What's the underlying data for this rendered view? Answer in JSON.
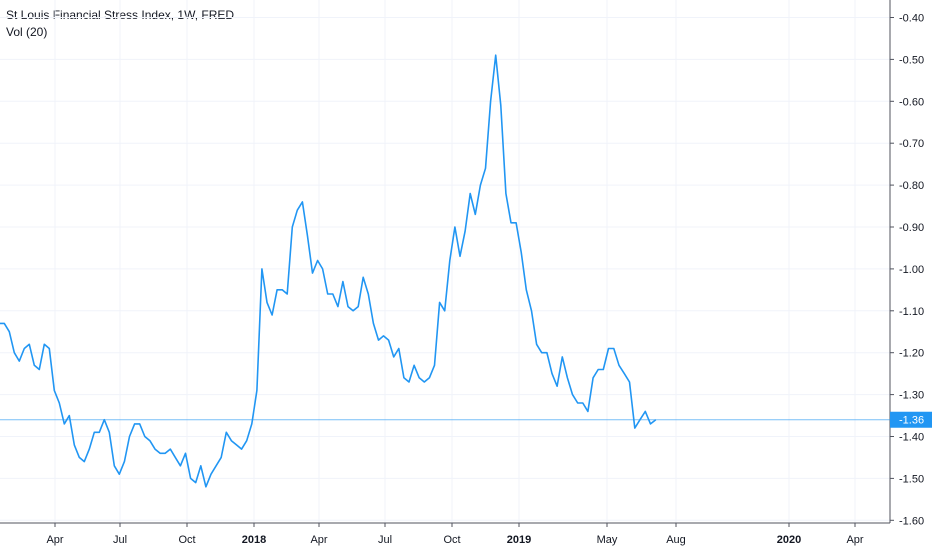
{
  "legend": {
    "title": "St Louis Financial Stress Index, 1W, FRED",
    "indicator": "Vol (20)"
  },
  "colors": {
    "series": "#2196f3",
    "grid": "#f0f3fa",
    "axis": "#50535e",
    "last_value_bg": "#2196f3"
  },
  "chart_data": {
    "type": "line",
    "title": "St Louis Financial Stress Index, 1W, FRED",
    "y_axis_position": "right",
    "y_direction": "inverted",
    "ylim": [
      -1.62,
      -0.37
    ],
    "y_ticks": [
      -0.4,
      -0.5,
      -0.6,
      -0.7,
      -0.8,
      -0.9,
      -1.0,
      -1.1,
      -1.2,
      -1.3,
      -1.4,
      -1.5,
      -1.6
    ],
    "y_tick_labels": [
      "-0.40",
      "-0.50",
      "-0.60",
      "-0.70",
      "-0.80",
      "-0.90",
      "-1.00",
      "-1.10",
      "-1.20",
      "-1.30",
      "-1.40",
      "-1.50",
      "-1.60"
    ],
    "x_ticks": [
      {
        "label": "Apr",
        "date": "2017-04-01",
        "year": false
      },
      {
        "label": "Jul",
        "date": "2017-07-01",
        "year": false
      },
      {
        "label": "Oct",
        "date": "2017-10-01",
        "year": false
      },
      {
        "label": "2018",
        "date": "2018-01-01",
        "year": true
      },
      {
        "label": "Apr",
        "date": "2018-04-01",
        "year": false
      },
      {
        "label": "Jul",
        "date": "2018-07-01",
        "year": false
      },
      {
        "label": "Oct",
        "date": "2018-10-01",
        "year": false
      },
      {
        "label": "2019",
        "date": "2019-01-01",
        "year": true
      },
      {
        "label": "May",
        "date": "2019-05-01",
        "year": false
      },
      {
        "label": "Aug",
        "date": "2019-08-01",
        "year": false
      },
      {
        "label": "2020",
        "date": "2020-01-01",
        "year": true
      },
      {
        "label": "Apr",
        "date": "2020-04-01",
        "year": false
      }
    ],
    "last_value": -1.36,
    "last_value_label": "-1.36",
    "grid": true,
    "series": [
      {
        "values": [
          [
            "2016-12-30",
            -1.07
          ],
          [
            "2017-01-06",
            -1.07
          ],
          [
            "2017-01-13",
            -1.13
          ],
          [
            "2017-01-20",
            -1.13
          ],
          [
            "2017-01-27",
            -1.15
          ],
          [
            "2017-02-03",
            -1.2
          ],
          [
            "2017-02-10",
            -1.22
          ],
          [
            "2017-02-17",
            -1.19
          ],
          [
            "2017-02-24",
            -1.18
          ],
          [
            "2017-03-03",
            -1.23
          ],
          [
            "2017-03-10",
            -1.24
          ],
          [
            "2017-03-17",
            -1.18
          ],
          [
            "2017-03-24",
            -1.19
          ],
          [
            "2017-03-31",
            -1.29
          ],
          [
            "2017-04-07",
            -1.32
          ],
          [
            "2017-04-14",
            -1.37
          ],
          [
            "2017-04-21",
            -1.35
          ],
          [
            "2017-04-28",
            -1.42
          ],
          [
            "2017-05-05",
            -1.45
          ],
          [
            "2017-05-12",
            -1.46
          ],
          [
            "2017-05-19",
            -1.43
          ],
          [
            "2017-05-26",
            -1.39
          ],
          [
            "2017-06-02",
            -1.39
          ],
          [
            "2017-06-09",
            -1.36
          ],
          [
            "2017-06-16",
            -1.39
          ],
          [
            "2017-06-23",
            -1.47
          ],
          [
            "2017-06-30",
            -1.49
          ],
          [
            "2017-07-07",
            -1.46
          ],
          [
            "2017-07-14",
            -1.4
          ],
          [
            "2017-07-21",
            -1.37
          ],
          [
            "2017-07-28",
            -1.37
          ],
          [
            "2017-08-04",
            -1.4
          ],
          [
            "2017-08-11",
            -1.41
          ],
          [
            "2017-08-18",
            -1.43
          ],
          [
            "2017-08-25",
            -1.44
          ],
          [
            "2017-09-01",
            -1.44
          ],
          [
            "2017-09-08",
            -1.43
          ],
          [
            "2017-09-15",
            -1.45
          ],
          [
            "2017-09-22",
            -1.47
          ],
          [
            "2017-09-29",
            -1.44
          ],
          [
            "2017-10-06",
            -1.5
          ],
          [
            "2017-10-13",
            -1.51
          ],
          [
            "2017-10-20",
            -1.47
          ],
          [
            "2017-10-27",
            -1.52
          ],
          [
            "2017-11-03",
            -1.49
          ],
          [
            "2017-11-10",
            -1.47
          ],
          [
            "2017-11-17",
            -1.45
          ],
          [
            "2017-11-24",
            -1.39
          ],
          [
            "2017-12-01",
            -1.41
          ],
          [
            "2017-12-08",
            -1.42
          ],
          [
            "2017-12-15",
            -1.43
          ],
          [
            "2017-12-22",
            -1.41
          ],
          [
            "2017-12-29",
            -1.37
          ],
          [
            "2018-01-05",
            -1.29
          ],
          [
            "2018-01-12",
            -1.0
          ],
          [
            "2018-01-19",
            -1.08
          ],
          [
            "2018-01-26",
            -1.11
          ],
          [
            "2018-02-02",
            -1.05
          ],
          [
            "2018-02-09",
            -1.05
          ],
          [
            "2018-02-16",
            -1.06
          ],
          [
            "2018-02-23",
            -0.9
          ],
          [
            "2018-03-02",
            -0.86
          ],
          [
            "2018-03-09",
            -0.84
          ],
          [
            "2018-03-16",
            -0.92
          ],
          [
            "2018-03-23",
            -1.01
          ],
          [
            "2018-03-30",
            -0.98
          ],
          [
            "2018-04-06",
            -1.0
          ],
          [
            "2018-04-13",
            -1.06
          ],
          [
            "2018-04-20",
            -1.06
          ],
          [
            "2018-04-27",
            -1.09
          ],
          [
            "2018-05-04",
            -1.03
          ],
          [
            "2018-05-11",
            -1.09
          ],
          [
            "2018-05-18",
            -1.1
          ],
          [
            "2018-05-25",
            -1.09
          ],
          [
            "2018-06-01",
            -1.02
          ],
          [
            "2018-06-08",
            -1.06
          ],
          [
            "2018-06-15",
            -1.13
          ],
          [
            "2018-06-22",
            -1.17
          ],
          [
            "2018-06-29",
            -1.16
          ],
          [
            "2018-07-06",
            -1.17
          ],
          [
            "2018-07-13",
            -1.21
          ],
          [
            "2018-07-20",
            -1.19
          ],
          [
            "2018-07-27",
            -1.26
          ],
          [
            "2018-08-03",
            -1.27
          ],
          [
            "2018-08-10",
            -1.23
          ],
          [
            "2018-08-17",
            -1.26
          ],
          [
            "2018-08-24",
            -1.27
          ],
          [
            "2018-08-31",
            -1.26
          ],
          [
            "2018-09-07",
            -1.23
          ],
          [
            "2018-09-14",
            -1.08
          ],
          [
            "2018-09-21",
            -1.1
          ],
          [
            "2018-09-28",
            -0.98
          ],
          [
            "2018-10-05",
            -0.9
          ],
          [
            "2018-10-12",
            -0.97
          ],
          [
            "2018-10-19",
            -0.91
          ],
          [
            "2018-10-26",
            -0.82
          ],
          [
            "2018-11-02",
            -0.87
          ],
          [
            "2018-11-09",
            -0.8
          ],
          [
            "2018-11-16",
            -0.76
          ],
          [
            "2018-11-23",
            -0.6
          ],
          [
            "2018-11-30",
            -0.49
          ],
          [
            "2018-12-07",
            -0.61
          ],
          [
            "2018-12-14",
            -0.82
          ],
          [
            "2018-12-21",
            -0.89
          ],
          [
            "2018-12-28",
            -0.89
          ],
          [
            "2019-01-04",
            -0.96
          ],
          [
            "2019-01-11",
            -1.05
          ],
          [
            "2019-01-18",
            -1.1
          ],
          [
            "2019-01-25",
            -1.18
          ],
          [
            "2019-02-01",
            -1.2
          ],
          [
            "2019-02-08",
            -1.2
          ],
          [
            "2019-02-15",
            -1.25
          ],
          [
            "2019-02-22",
            -1.28
          ],
          [
            "2019-03-01",
            -1.21
          ],
          [
            "2019-03-08",
            -1.26
          ],
          [
            "2019-03-15",
            -1.3
          ],
          [
            "2019-03-22",
            -1.32
          ],
          [
            "2019-03-29",
            -1.32
          ],
          [
            "2019-04-05",
            -1.34
          ],
          [
            "2019-04-12",
            -1.26
          ],
          [
            "2019-04-19",
            -1.24
          ],
          [
            "2019-04-26",
            -1.24
          ],
          [
            "2019-05-03",
            -1.19
          ],
          [
            "2019-05-10",
            -1.19
          ],
          [
            "2019-05-17",
            -1.23
          ],
          [
            "2019-05-24",
            -1.25
          ],
          [
            "2019-05-31",
            -1.27
          ],
          [
            "2019-06-07",
            -1.38
          ],
          [
            "2019-06-14",
            -1.36
          ],
          [
            "2019-06-21",
            -1.34
          ],
          [
            "2019-06-28",
            -1.37
          ],
          [
            "2019-07-05",
            -1.36
          ]
        ]
      }
    ]
  }
}
